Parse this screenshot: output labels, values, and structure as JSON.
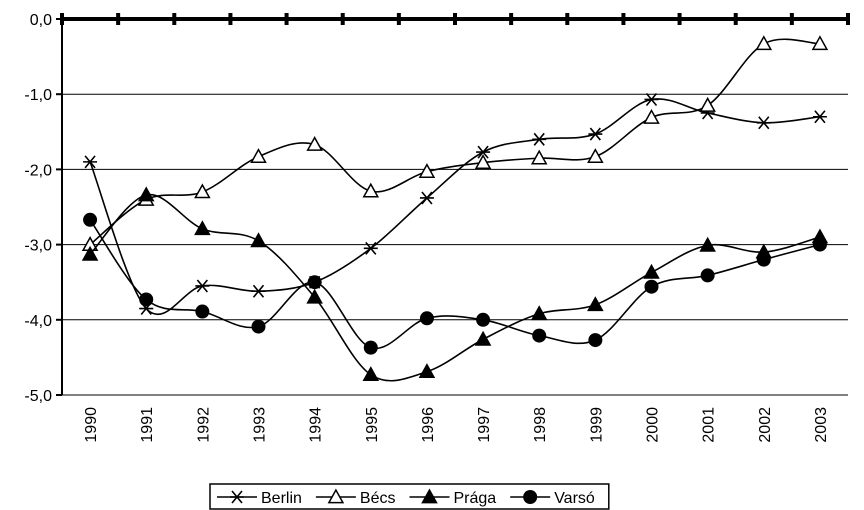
{
  "chart_data": {
    "type": "line",
    "categories": [
      "1990",
      "1991",
      "1992",
      "1993",
      "1994",
      "1995",
      "1996",
      "1997",
      "1998",
      "1999",
      "2000",
      "2001",
      "2002",
      "2003"
    ],
    "ylim": [
      -5,
      0
    ],
    "yticks": [
      {
        "value": 0,
        "label": "0,0"
      },
      {
        "value": -1,
        "label": "-1,0"
      },
      {
        "value": -2,
        "label": "-2,0"
      },
      {
        "value": -3,
        "label": "-3,0"
      },
      {
        "value": -4,
        "label": "-4,0"
      },
      {
        "value": -5,
        "label": "-5,0"
      }
    ],
    "grid": true,
    "legend": "bottom",
    "series": [
      {
        "name": "Berlin",
        "color": "#000000",
        "marker": "asterisk",
        "values": [
          -1.9,
          -3.85,
          -3.55,
          -3.62,
          -3.5,
          -3.05,
          -2.38,
          -1.77,
          -1.6,
          -1.53,
          -1.07,
          -1.25,
          -1.38,
          -1.3
        ]
      },
      {
        "name": "Bécs",
        "color": "#000000",
        "marker": "triangle-open",
        "values": [
          -3.0,
          -2.4,
          -2.3,
          -1.83,
          -1.67,
          -2.29,
          -2.03,
          -1.91,
          -1.85,
          -1.83,
          -1.31,
          -1.15,
          -0.33,
          -0.33
        ]
      },
      {
        "name": "Prága",
        "color": "#000000",
        "marker": "triangle",
        "values": [
          -3.13,
          -2.34,
          -2.79,
          -2.95,
          -3.7,
          -4.73,
          -4.69,
          -4.26,
          -3.92,
          -3.8,
          -3.37,
          -3.01,
          -3.1,
          -2.9
        ]
      },
      {
        "name": "Varsó",
        "color": "#000000",
        "marker": "circle",
        "values": [
          -2.67,
          -3.73,
          -3.89,
          -4.09,
          -3.5,
          -4.37,
          -3.98,
          -4.0,
          -4.21,
          -4.27,
          -3.56,
          -3.41,
          -3.2,
          -3.0
        ]
      }
    ]
  }
}
